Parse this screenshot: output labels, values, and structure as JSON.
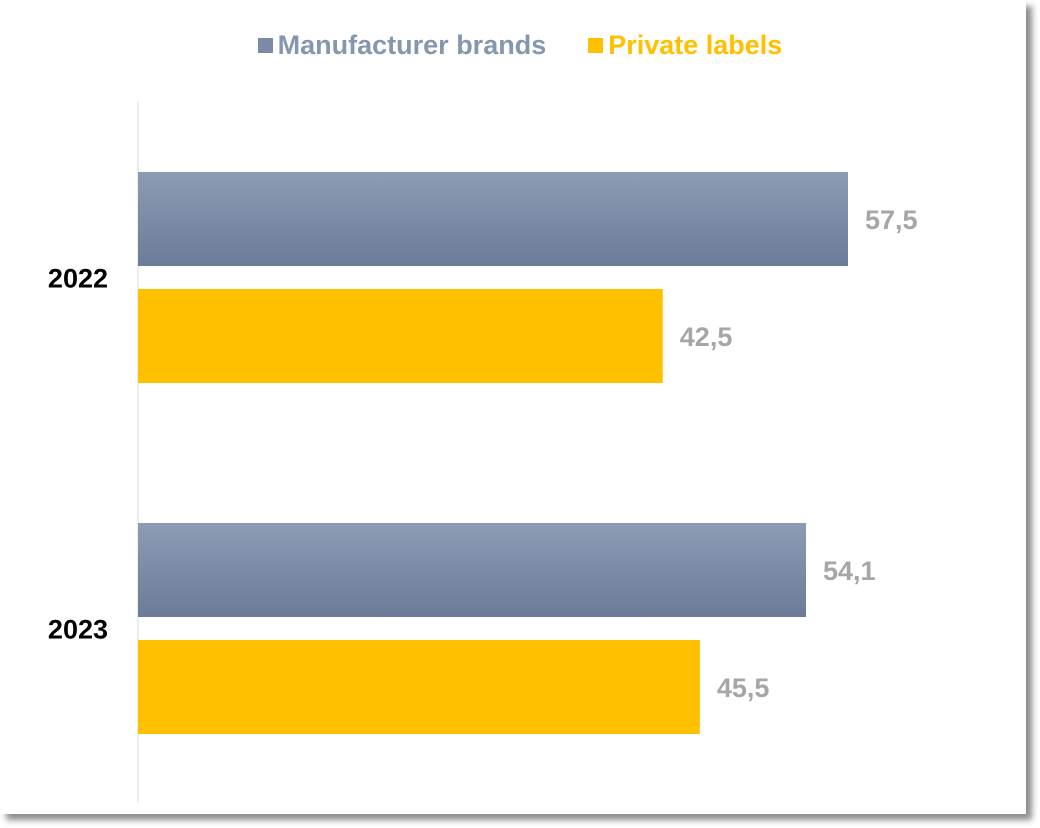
{
  "chart_data": {
    "type": "bar",
    "orientation": "horizontal",
    "categories": [
      "2022",
      "2023"
    ],
    "series": [
      {
        "name": "Manufacturer brands",
        "values": [
          57.5,
          54.1
        ],
        "value_labels": [
          "57,5",
          "54,1"
        ],
        "color": "#7b8aa6"
      },
      {
        "name": "Private labels",
        "values": [
          42.5,
          45.5
        ],
        "value_labels": [
          "42,5",
          "45,5"
        ],
        "color": "#ffc000"
      }
    ],
    "xlim": [
      0,
      72
    ],
    "legend_position": "top",
    "grid": false
  },
  "colors": {
    "manufacturer_top": "#8d9bb5",
    "manufacturer_bottom": "#6c7b97",
    "private": "#ffc000",
    "value_text": "#a6a6a6",
    "legend_manufacturer_text": "#8496b0"
  }
}
